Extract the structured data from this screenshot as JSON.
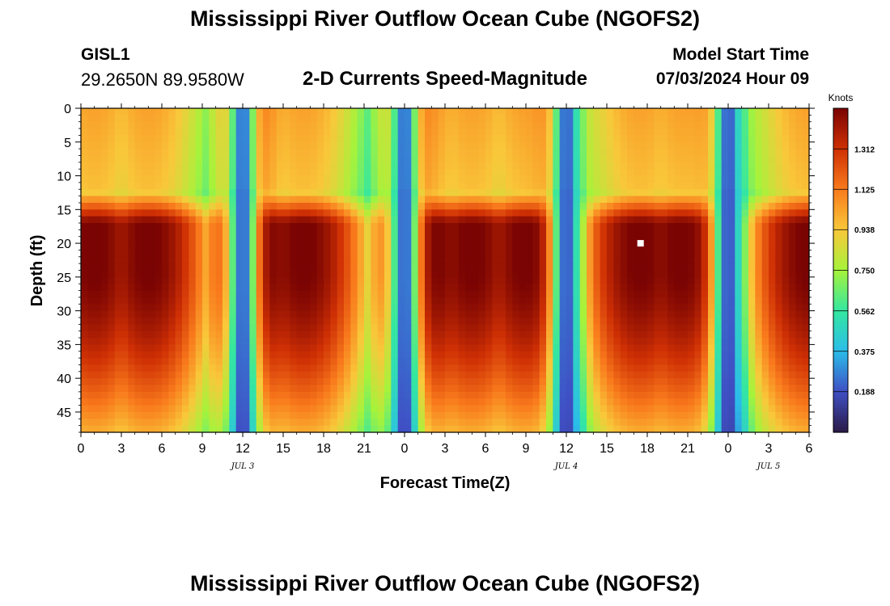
{
  "page": {
    "title": "Mississippi River Outflow Ocean Cube (NGOFS2)",
    "title_repeat": "Mississippi River Outflow Ocean Cube (NGOFS2)",
    "station": "GISL1",
    "coordinates": "29.2650N  89.9580W",
    "subtitle": "2-D Currents Speed-Magnitude",
    "model_start_label": "Model Start Time",
    "model_start_value": "07/03/2024 Hour 09"
  },
  "chart_data": {
    "type": "heatmap",
    "title": "2-D Currents Speed-Magnitude",
    "xlabel": "Forecast Time(Z)",
    "ylabel": "Depth (ft)",
    "x_ticks": [
      "0",
      "3",
      "6",
      "9",
      "12",
      "15",
      "18",
      "21",
      "0",
      "3",
      "6",
      "9",
      "12",
      "15",
      "18",
      "21",
      "0",
      "3",
      "6"
    ],
    "x_range_hours": [
      0,
      54
    ],
    "x_date_labels": [
      {
        "label": "JUL 3",
        "hour": 12
      },
      {
        "label": "JUL 4",
        "hour": 36
      },
      {
        "label": "JUL 5",
        "hour": 51
      }
    ],
    "y_ticks": [
      0,
      5,
      10,
      15,
      20,
      25,
      30,
      35,
      40,
      45
    ],
    "y_range": [
      0,
      48
    ],
    "y_reversed": true,
    "colorbar": {
      "label": "Knots",
      "ticks": [
        "0.188",
        "0.375",
        "0.562",
        "0.750",
        "0.938",
        "1.125",
        "1.312"
      ],
      "range": [
        0.0,
        1.5
      ],
      "colors": [
        "#2a1a46",
        "#3f4fc4",
        "#2bbde9",
        "#34e7a1",
        "#a6f33b",
        "#f9c83a",
        "#f97a1c",
        "#cf3004",
        "#7a0403"
      ]
    },
    "marker": {
      "hour": 41.5,
      "depth": 20
    },
    "max_ebb_flood_hours": [
      5,
      16.5,
      29,
      41.5,
      54
    ],
    "slack_hours": [
      12,
      24,
      36,
      48
    ],
    "max_speed_knots": 1.45,
    "surface_max_speed_knots": 0.85
  }
}
